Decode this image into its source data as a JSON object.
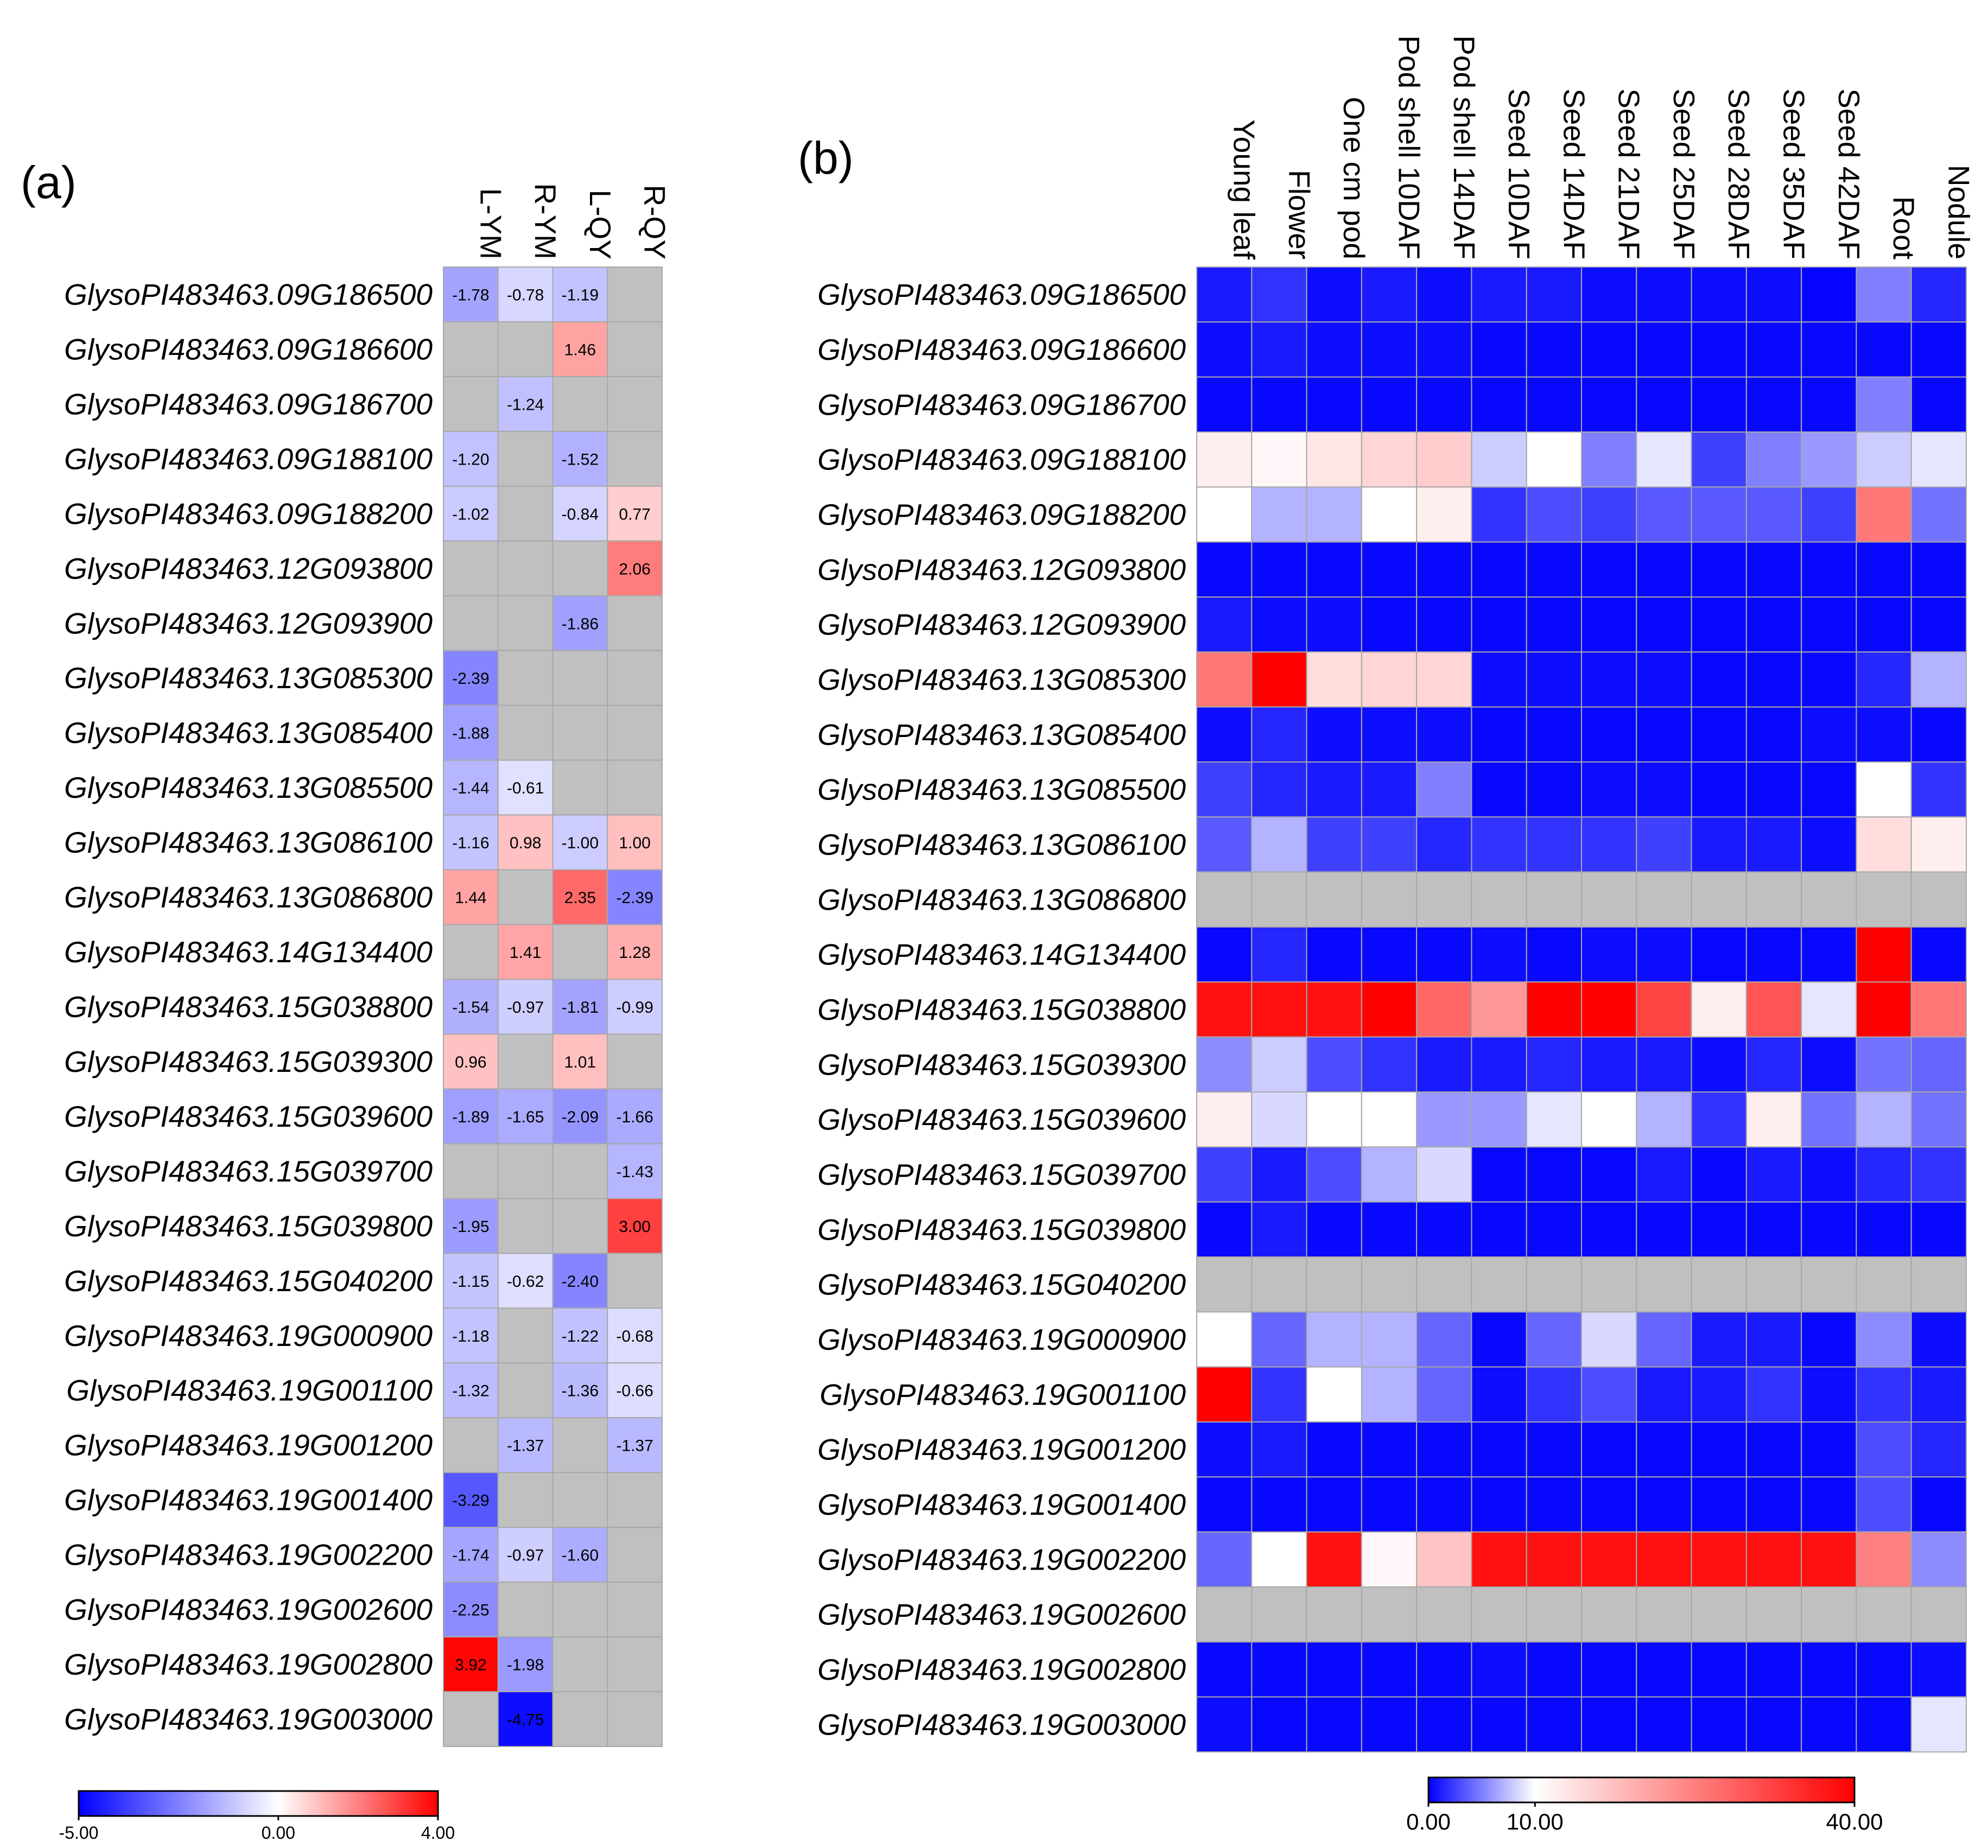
{
  "chart_data": [
    {
      "type": "heatmap",
      "panel": "(a)",
      "columns": [
        "L-YM",
        "R-YM",
        "L-QY",
        "R-QY"
      ],
      "rows": [
        "GlysoPI483463.09G186500",
        "GlysoPI483463.09G186600",
        "GlysoPI483463.09G186700",
        "GlysoPI483463.09G188100",
        "GlysoPI483463.09G188200",
        "GlysoPI483463.12G093800",
        "GlysoPI483463.12G093900",
        "GlysoPI483463.13G085300",
        "GlysoPI483463.13G085400",
        "GlysoPI483463.13G085500",
        "GlysoPI483463.13G086100",
        "GlysoPI483463.13G086800",
        "GlysoPI483463.14G134400",
        "GlysoPI483463.15G038800",
        "GlysoPI483463.15G039300",
        "GlysoPI483463.15G039600",
        "GlysoPI483463.15G039700",
        "GlysoPI483463.15G039800",
        "GlysoPI483463.15G040200",
        "GlysoPI483463.19G000900",
        "GlysoPI483463.19G001100",
        "GlysoPI483463.19G001200",
        "GlysoPI483463.19G001400",
        "GlysoPI483463.19G002200",
        "GlysoPI483463.19G002600",
        "GlysoPI483463.19G002800",
        "GlysoPI483463.19G003000"
      ],
      "values": [
        [
          -1.78,
          -0.78,
          -1.19,
          null
        ],
        [
          null,
          null,
          1.46,
          null
        ],
        [
          null,
          -1.24,
          null,
          null
        ],
        [
          -1.2,
          null,
          -1.52,
          null
        ],
        [
          -1.02,
          null,
          -0.84,
          0.77
        ],
        [
          null,
          null,
          null,
          2.06
        ],
        [
          null,
          null,
          -1.86,
          null
        ],
        [
          -2.39,
          null,
          null,
          null
        ],
        [
          -1.88,
          null,
          null,
          null
        ],
        [
          -1.44,
          -0.61,
          null,
          null
        ],
        [
          -1.16,
          0.98,
          -1.0,
          1.0
        ],
        [
          1.44,
          null,
          2.35,
          -2.39
        ],
        [
          null,
          1.41,
          null,
          1.28
        ],
        [
          -1.54,
          -0.97,
          -1.81,
          -0.99
        ],
        [
          0.96,
          null,
          1.01,
          null
        ],
        [
          -1.89,
          -1.65,
          -2.09,
          -1.66
        ],
        [
          null,
          null,
          null,
          -1.43
        ],
        [
          -1.95,
          null,
          null,
          3.0
        ],
        [
          -1.15,
          -0.62,
          -2.4,
          null
        ],
        [
          -1.18,
          null,
          -1.22,
          -0.68
        ],
        [
          -1.32,
          null,
          -1.36,
          -0.66
        ],
        [
          null,
          -1.37,
          null,
          -1.37
        ],
        [
          -3.29,
          null,
          null,
          null
        ],
        [
          -1.74,
          -0.97,
          -1.6,
          null
        ],
        [
          -2.25,
          null,
          null,
          null
        ],
        [
          3.92,
          -1.98,
          null,
          null
        ],
        [
          null,
          -4.75,
          null,
          null
        ]
      ],
      "labels": [
        [
          "-1.78",
          "-0.78",
          "-1.19",
          ""
        ],
        [
          "",
          "",
          "1.46",
          ""
        ],
        [
          "",
          "-1.24",
          "",
          ""
        ],
        [
          "-1.20",
          "",
          "-1.52",
          ""
        ],
        [
          "-1.02",
          "",
          "-0.84",
          "0.77"
        ],
        [
          "",
          "",
          "",
          "2.06"
        ],
        [
          "",
          "",
          "-1.86",
          ""
        ],
        [
          "-2.39",
          "",
          "",
          ""
        ],
        [
          "-1.88",
          "",
          "",
          ""
        ],
        [
          "-1.44",
          "-0.61",
          "",
          ""
        ],
        [
          "-1.16",
          "0.98",
          "-1.00",
          "1.00"
        ],
        [
          "1.44",
          "",
          "2.35",
          "-2.39"
        ],
        [
          "",
          "1.41",
          "",
          "1.28"
        ],
        [
          "-1.54",
          "-0.97",
          "-1.81",
          "-0.99"
        ],
        [
          "0.96",
          "",
          "1.01",
          ""
        ],
        [
          "-1.89",
          "-1.65",
          "-2.09",
          "-1.66"
        ],
        [
          "",
          "",
          "",
          "-1.43"
        ],
        [
          "-1.95",
          "",
          "",
          "3.00"
        ],
        [
          "-1.15",
          "-0.62",
          "-2.40",
          ""
        ],
        [
          "-1.18",
          "",
          "-1.22",
          "-0.68"
        ],
        [
          "-1.32",
          "",
          "-1.36",
          "-0.66"
        ],
        [
          "",
          "-1.37",
          "",
          "-1.37"
        ],
        [
          "-3.29",
          "",
          "",
          ""
        ],
        [
          "-1.74",
          "-0.97",
          "-1.60",
          ""
        ],
        [
          "-2.25",
          "",
          "",
          ""
        ],
        [
          "3.92",
          "-1.98",
          "",
          ""
        ],
        [
          "",
          "-4.75",
          "",
          ""
        ]
      ],
      "colorscale": {
        "min": -5,
        "mid": 0,
        "max": 4,
        "low_color": "#0000ff",
        "mid_color": "#ffffff",
        "high_color": "#ff0000",
        "missing_color": "#c0c0c0"
      },
      "colorbar_ticks": [
        "-5.00",
        "0.00",
        "4.00"
      ]
    },
    {
      "type": "heatmap",
      "panel": "(b)",
      "columns": [
        "Young leaf",
        "Flower",
        "One cm pod",
        "Pod shell 10DAF",
        "Pod shell 14DAF",
        "Seed 10DAF",
        "Seed 14DAF",
        "Seed 21DAF",
        "Seed 25DAF",
        "Seed 28DAF",
        "Seed 35DAF",
        "Seed 42DAF",
        "Root",
        "Nodule"
      ],
      "rows": [
        "GlysoPI483463.09G186500",
        "GlysoPI483463.09G186600",
        "GlysoPI483463.09G186700",
        "GlysoPI483463.09G188100",
        "GlysoPI483463.09G188200",
        "GlysoPI483463.12G093800",
        "GlysoPI483463.12G093900",
        "GlysoPI483463.13G085300",
        "GlysoPI483463.13G085400",
        "GlysoPI483463.13G085500",
        "GlysoPI483463.13G086100",
        "GlysoPI483463.13G086800",
        "GlysoPI483463.14G134400",
        "GlysoPI483463.15G038800",
        "GlysoPI483463.15G039300",
        "GlysoPI483463.15G039600",
        "GlysoPI483463.15G039700",
        "GlysoPI483463.15G039800",
        "GlysoPI483463.15G040200",
        "GlysoPI483463.19G000900",
        "GlysoPI483463.19G001100",
        "GlysoPI483463.19G001200",
        "GlysoPI483463.19G001400",
        "GlysoPI483463.19G002200",
        "GlysoPI483463.19G002600",
        "GlysoPI483463.19G002800",
        "GlysoPI483463.19G003000"
      ],
      "values": [
        [
          1.0,
          2.0,
          0.5,
          1.0,
          0.5,
          1.0,
          1.0,
          0.5,
          0.5,
          0.5,
          0.5,
          0.2,
          5.0,
          1.5
        ],
        [
          0.5,
          1.0,
          0.5,
          0.5,
          0.5,
          0.3,
          0.3,
          0.3,
          0.3,
          0.3,
          0.3,
          0.3,
          0.3,
          0.3
        ],
        [
          0.3,
          0.3,
          0.3,
          0.3,
          0.3,
          0.3,
          0.3,
          0.3,
          0.3,
          0.3,
          0.3,
          0.3,
          5.0,
          0.3
        ],
        [
          12.0,
          11.0,
          13.0,
          15.0,
          16.0,
          8.0,
          10.0,
          5.0,
          9.0,
          2.5,
          5.0,
          6.0,
          8.0,
          9.0
        ],
        [
          10.0,
          7.0,
          7.0,
          10.0,
          12.0,
          2.0,
          3.0,
          2.5,
          3.5,
          3.5,
          3.5,
          2.5,
          26.0,
          4.5
        ],
        [
          0.3,
          0.3,
          0.3,
          0.3,
          0.3,
          0.3,
          0.3,
          0.3,
          0.3,
          0.3,
          0.3,
          0.3,
          0.3,
          0.3
        ],
        [
          1.0,
          0.5,
          0.5,
          0.3,
          0.3,
          0.3,
          0.3,
          0.3,
          0.3,
          0.3,
          0.3,
          0.3,
          0.3,
          0.3
        ],
        [
          26.0,
          40.0,
          14.0,
          15.0,
          15.0,
          0.5,
          0.5,
          0.5,
          0.5,
          0.3,
          0.3,
          0.3,
          1.5,
          7.0
        ],
        [
          0.5,
          1.5,
          0.5,
          0.5,
          0.5,
          0.3,
          0.3,
          0.3,
          0.3,
          0.3,
          0.3,
          0.5,
          0.5,
          0.3
        ],
        [
          2.5,
          1.5,
          1.0,
          1.0,
          5.0,
          0.3,
          0.3,
          0.5,
          0.5,
          0.3,
          0.3,
          0.3,
          10.0,
          2.0
        ],
        [
          3.5,
          7.0,
          2.5,
          2.5,
          1.5,
          2.0,
          2.0,
          2.0,
          2.5,
          1.0,
          1.0,
          0.5,
          14.0,
          12.0
        ],
        [
          null,
          null,
          null,
          null,
          null,
          null,
          null,
          null,
          null,
          null,
          null,
          null,
          null,
          null
        ],
        [
          0.3,
          1.5,
          0.3,
          0.3,
          0.3,
          0.5,
          0.3,
          0.5,
          0.5,
          0.3,
          0.3,
          0.3,
          40.0,
          0.3
        ],
        [
          38.0,
          38.0,
          38.0,
          40.0,
          28.0,
          22.0,
          40.0,
          40.0,
          32.0,
          12.0,
          30.0,
          9.0,
          40.0,
          26.0
        ],
        [
          5.5,
          8.0,
          3.0,
          2.0,
          1.0,
          1.0,
          1.5,
          1.0,
          1.0,
          0.5,
          1.5,
          0.5,
          4.5,
          4.0
        ],
        [
          12.0,
          8.5,
          10.0,
          10.0,
          6.0,
          6.0,
          9.0,
          10.0,
          7.0,
          2.0,
          12.0,
          4.5,
          7.0,
          4.5
        ],
        [
          2.5,
          1.0,
          3.0,
          7.0,
          8.5,
          0.3,
          0.3,
          0.3,
          1.0,
          0.3,
          1.0,
          0.5,
          1.5,
          2.0
        ],
        [
          0.3,
          1.0,
          0.3,
          0.3,
          0.3,
          0.3,
          0.3,
          0.3,
          0.3,
          0.3,
          0.3,
          0.3,
          0.3,
          0.3
        ],
        [
          null,
          null,
          null,
          null,
          null,
          null,
          null,
          null,
          null,
          null,
          null,
          null,
          null,
          null
        ],
        [
          10.0,
          4.0,
          7.0,
          7.0,
          4.0,
          0.3,
          4.0,
          8.5,
          4.0,
          1.0,
          1.0,
          0.3,
          5.5,
          0.5
        ],
        [
          40.0,
          2.0,
          10.0,
          7.0,
          4.0,
          0.5,
          2.0,
          3.0,
          1.0,
          1.0,
          2.0,
          0.5,
          2.0,
          1.0
        ],
        [
          0.5,
          1.0,
          0.3,
          0.3,
          0.3,
          0.3,
          0.3,
          0.3,
          0.3,
          0.3,
          0.3,
          0.3,
          3.0,
          1.5
        ],
        [
          0.3,
          0.3,
          0.3,
          0.3,
          0.3,
          0.3,
          0.3,
          0.3,
          0.3,
          0.3,
          0.3,
          0.3,
          3.0,
          0.3
        ],
        [
          4.0,
          10.0,
          38.0,
          11.0,
          17.0,
          38.0,
          38.0,
          38.0,
          38.0,
          38.0,
          38.0,
          38.0,
          25.0,
          5.5
        ],
        [
          null,
          null,
          null,
          null,
          null,
          null,
          null,
          null,
          null,
          null,
          null,
          null,
          null,
          null
        ],
        [
          0.3,
          0.3,
          0.3,
          0.3,
          0.3,
          0.5,
          0.3,
          0.3,
          0.3,
          0.3,
          0.3,
          0.3,
          0.3,
          0.5
        ],
        [
          0.5,
          0.3,
          0.3,
          0.3,
          0.3,
          0.3,
          0.3,
          0.3,
          0.3,
          0.3,
          0.3,
          0.3,
          0.3,
          9.0
        ]
      ],
      "colorscale": {
        "min": 0,
        "mid": 10,
        "max": 40,
        "low_color": "#0000ff",
        "mid_color": "#ffffff",
        "high_color": "#ff0000",
        "missing_color": "#c0c0c0"
      },
      "colorbar_ticks": [
        "0.00",
        "10.00",
        "40.00"
      ]
    }
  ]
}
